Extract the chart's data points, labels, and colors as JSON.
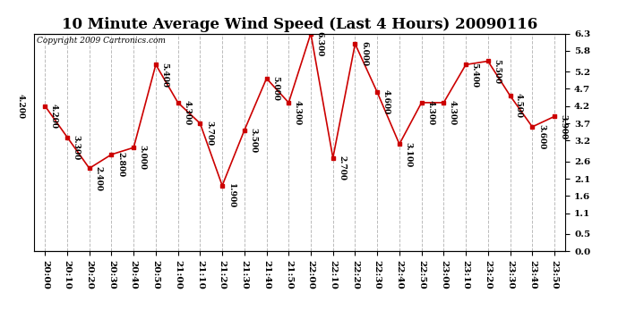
{
  "title": "10 Minute Average Wind Speed (Last 4 Hours) 20090116",
  "copyright": "Copyright 2009 Cartronics.com",
  "x_labels": [
    "20:00",
    "20:10",
    "20:20",
    "20:30",
    "20:40",
    "20:50",
    "21:00",
    "21:10",
    "21:20",
    "21:30",
    "21:40",
    "21:50",
    "22:00",
    "22:10",
    "22:20",
    "22:30",
    "22:40",
    "22:50",
    "23:00",
    "23:10",
    "23:20",
    "23:30",
    "23:40",
    "23:50"
  ],
  "y_values": [
    4.2,
    3.3,
    2.4,
    2.8,
    3.0,
    5.4,
    4.3,
    3.7,
    1.9,
    3.5,
    5.0,
    4.3,
    6.3,
    2.7,
    6.0,
    4.6,
    3.1,
    4.3,
    4.3,
    5.4,
    5.5,
    4.5,
    3.6,
    3.9
  ],
  "point_labels": [
    "4.200",
    "3.300",
    "2.400",
    "2.800",
    "3.000",
    "5.400",
    "4.300",
    "3.700",
    "1.900",
    "3.500",
    "5.000",
    "4.300",
    "6.300",
    "2.700",
    "6.000",
    "4.600",
    "3.100",
    "4.300",
    "4.300",
    "5.400",
    "5.500",
    "4.500",
    "3.600",
    "3.900"
  ],
  "line_color": "#cc0000",
  "marker_color": "#cc0000",
  "bg_color": "#ffffff",
  "grid_color": "#bbbbbb",
  "ylim": [
    0.0,
    6.3
  ],
  "yticks_left": [],
  "yticks_right": [
    0.0,
    0.5,
    1.1,
    1.6,
    2.1,
    2.6,
    3.2,
    3.7,
    4.2,
    4.7,
    5.2,
    5.8,
    6.3
  ],
  "title_fontsize": 12,
  "label_fontsize": 6.5,
  "tick_fontsize": 7.5,
  "copyright_fontsize": 6.5
}
